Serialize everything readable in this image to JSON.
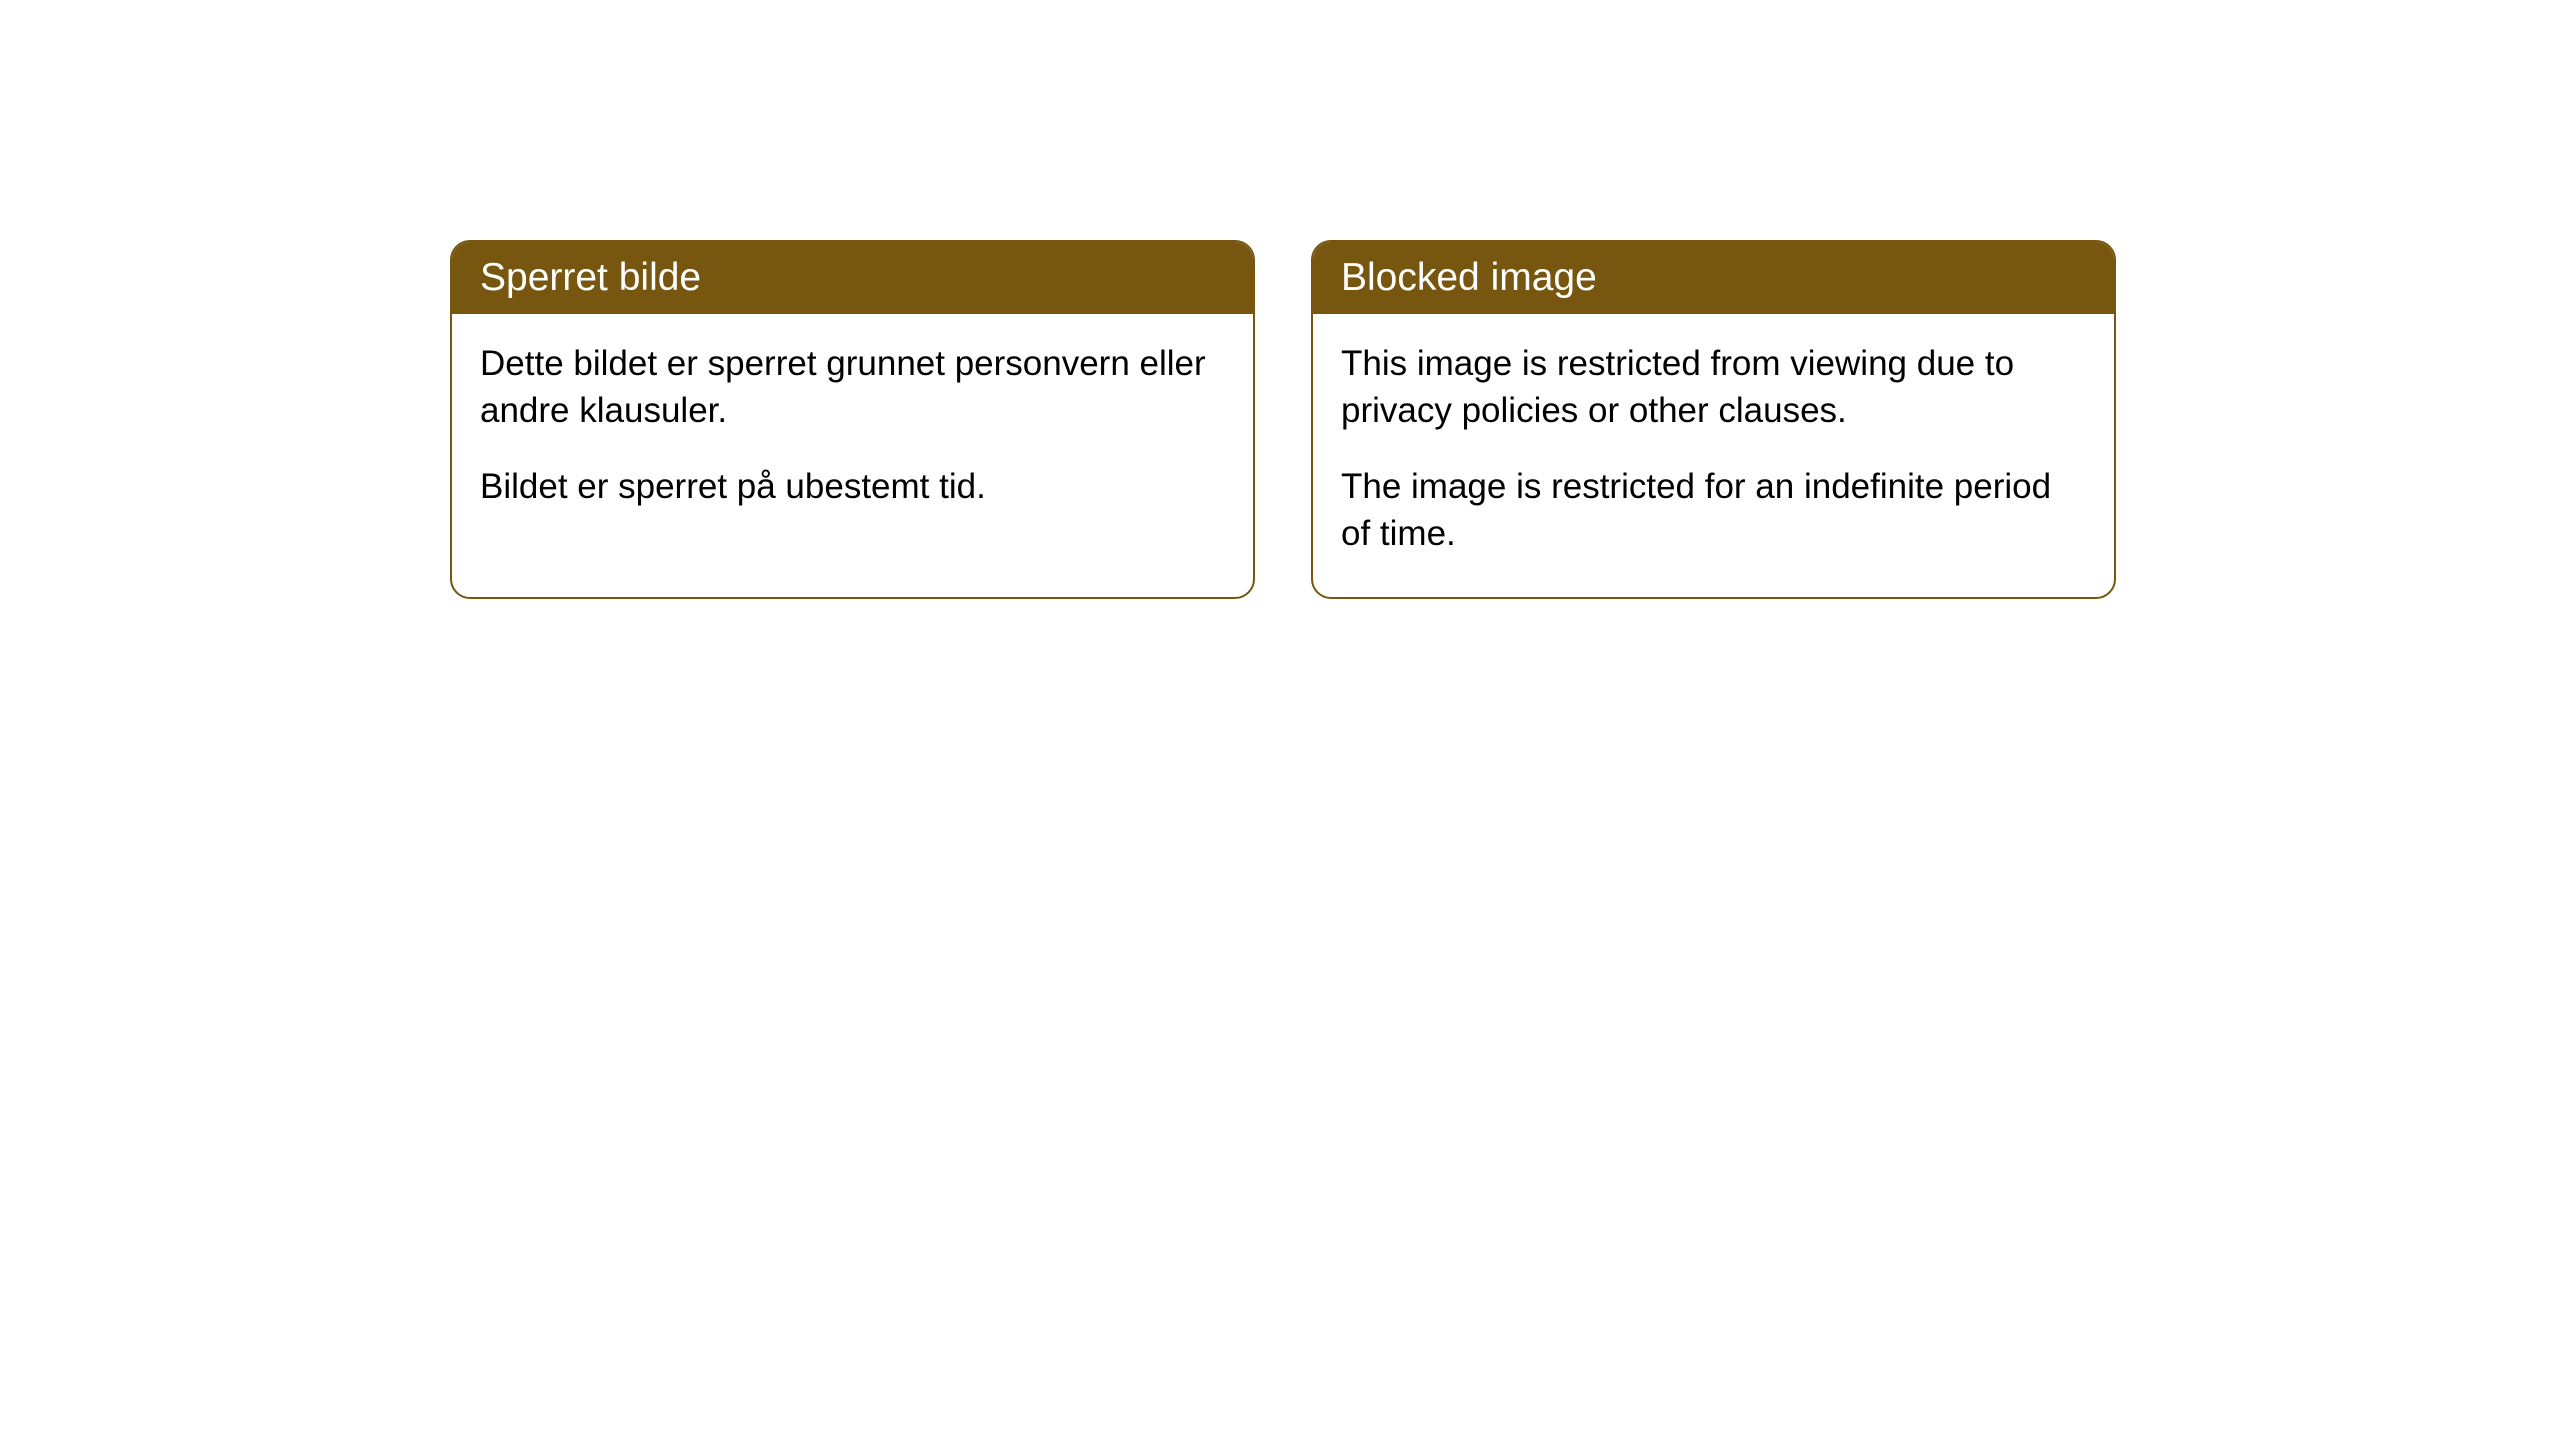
{
  "cards": [
    {
      "title": "Sperret bilde",
      "paragraph1": "Dette bildet er sperret grunnet personvern eller andre klausuler.",
      "paragraph2": "Bildet er sperret på ubestemt tid."
    },
    {
      "title": "Blocked image",
      "paragraph1": "This image is restricted from viewing due to privacy policies or other clauses.",
      "paragraph2": "The image is restricted for an indefinite period of time."
    }
  ],
  "style": {
    "header_bg": "#77570f",
    "header_text": "#ffffff",
    "border_color": "#77570f",
    "body_bg": "#ffffff",
    "body_text": "#000000",
    "border_radius": "20px",
    "title_fontsize": "39px",
    "body_fontsize": "35px"
  }
}
